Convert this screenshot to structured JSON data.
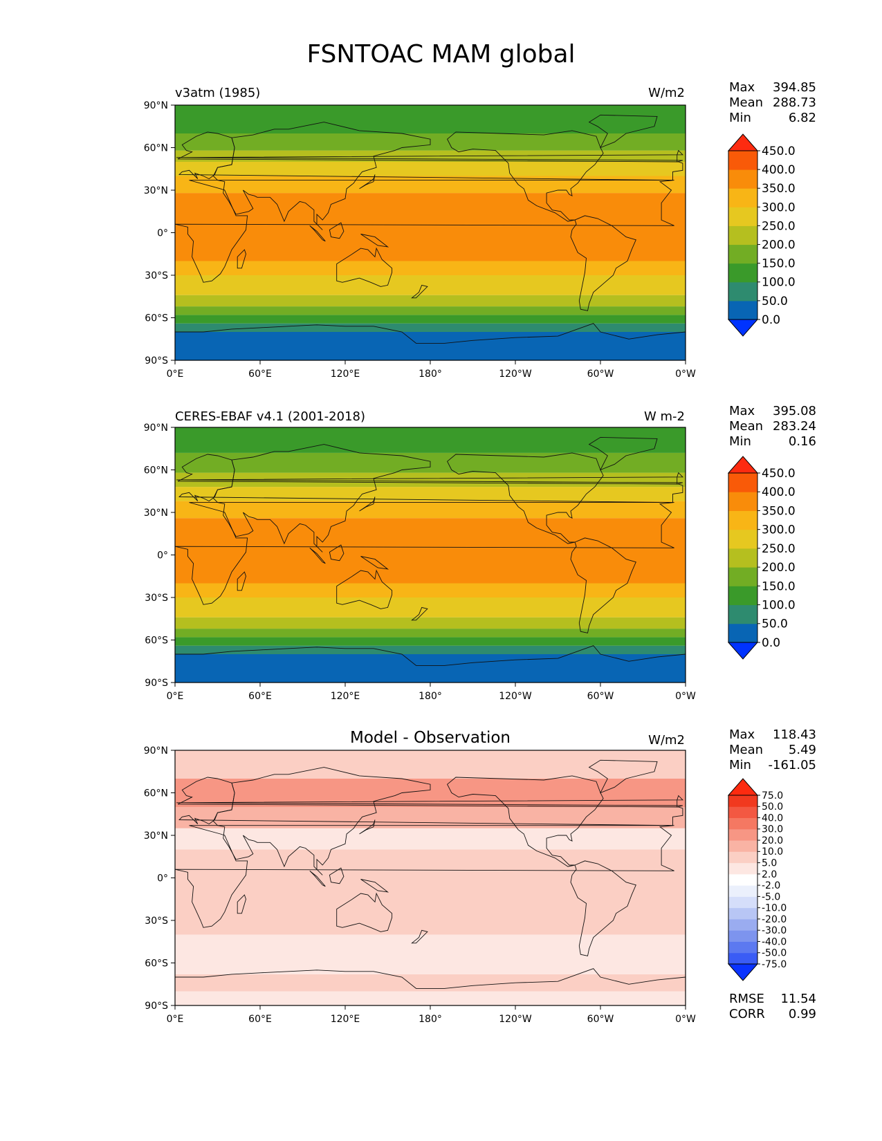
{
  "title": "FSNTOAC MAM global",
  "x_ticks": [
    "0°E",
    "60°E",
    "120°E",
    "180°",
    "120°W",
    "60°W",
    "0°W"
  ],
  "y_ticks": [
    "90°N",
    "60°N",
    "30°N",
    "0°",
    "30°S",
    "60°S",
    "90°S"
  ],
  "panels": [
    {
      "left_title": "v3atm (1985)",
      "center_title": "",
      "units": "W/m2",
      "stats": [
        {
          "label": "Max",
          "value": "394.85"
        },
        {
          "label": "Mean",
          "value": "288.73"
        },
        {
          "label": "Min",
          "value": "6.82"
        }
      ]
    },
    {
      "left_title": "CERES-EBAF v4.1 (2001-2018)",
      "center_title": "",
      "units": "W m-2",
      "stats": [
        {
          "label": "Max",
          "value": "395.08"
        },
        {
          "label": "Mean",
          "value": "283.24"
        },
        {
          "label": "Min",
          "value": "0.16"
        }
      ]
    },
    {
      "left_title": "",
      "center_title": "Model - Observation",
      "units": "W/m2",
      "stats": [
        {
          "label": "Max",
          "value": "118.43"
        },
        {
          "label": "Mean",
          "value": "5.49"
        },
        {
          "label": "Min",
          "value": "-161.05"
        }
      ],
      "extra_stats": [
        {
          "label": "RMSE",
          "value": "11.54"
        },
        {
          "label": "CORR",
          "value": "0.99"
        }
      ]
    }
  ],
  "chart_data": [
    {
      "type": "heatmap",
      "title": "v3atm (1985)",
      "units": "W/m2",
      "xlim": [
        0,
        360
      ],
      "ylim": [
        -90,
        90
      ],
      "colorbar": {
        "levels": [
          "0.0",
          "50.0",
          "100.0",
          "150.0",
          "200.0",
          "250.0",
          "300.0",
          "350.0",
          "400.0",
          "450.0"
        ],
        "colors": [
          "#0033ff",
          "#0865b4",
          "#2e8b6f",
          "#3a9a2a",
          "#72ad24",
          "#b5bf1f",
          "#e6c820",
          "#f8b516",
          "#f98c0a",
          "#f95a08",
          "#fd2b10"
        ],
        "extend": "both"
      },
      "zonal_bands": [
        {
          "lat": [
            -90,
            -70
          ],
          "value": 25
        },
        {
          "lat": [
            -70,
            -64
          ],
          "value": 75
        },
        {
          "lat": [
            -64,
            -58
          ],
          "value": 125
        },
        {
          "lat": [
            -58,
            -52
          ],
          "value": 175
        },
        {
          "lat": [
            -52,
            -44
          ],
          "value": 225
        },
        {
          "lat": [
            -44,
            -30
          ],
          "value": 275
        },
        {
          "lat": [
            -30,
            -20
          ],
          "value": 325
        },
        {
          "lat": [
            -20,
            28
          ],
          "value": 375
        },
        {
          "lat": [
            28,
            40
          ],
          "value": 325
        },
        {
          "lat": [
            40,
            50
          ],
          "value": 275
        },
        {
          "lat": [
            50,
            58
          ],
          "value": 225
        },
        {
          "lat": [
            58,
            70
          ],
          "value": 175
        },
        {
          "lat": [
            70,
            90
          ],
          "value": 125
        }
      ]
    },
    {
      "type": "heatmap",
      "title": "CERES-EBAF v4.1 (2001-2018)",
      "units": "W m-2",
      "xlim": [
        0,
        360
      ],
      "ylim": [
        -90,
        90
      ],
      "colorbar": {
        "levels": [
          "0.0",
          "50.0",
          "100.0",
          "150.0",
          "200.0",
          "250.0",
          "300.0",
          "350.0",
          "400.0",
          "450.0"
        ],
        "colors": [
          "#0033ff",
          "#0865b4",
          "#2e8b6f",
          "#3a9a2a",
          "#72ad24",
          "#b5bf1f",
          "#e6c820",
          "#f8b516",
          "#f98c0a",
          "#f95a08",
          "#fd2b10"
        ],
        "extend": "both"
      },
      "zonal_bands": [
        {
          "lat": [
            -90,
            -70
          ],
          "value": 25
        },
        {
          "lat": [
            -70,
            -64
          ],
          "value": 75
        },
        {
          "lat": [
            -64,
            -58
          ],
          "value": 125
        },
        {
          "lat": [
            -58,
            -52
          ],
          "value": 175
        },
        {
          "lat": [
            -52,
            -44
          ],
          "value": 225
        },
        {
          "lat": [
            -44,
            -30
          ],
          "value": 275
        },
        {
          "lat": [
            -30,
            -20
          ],
          "value": 325
        },
        {
          "lat": [
            -20,
            26
          ],
          "value": 375
        },
        {
          "lat": [
            26,
            38
          ],
          "value": 325
        },
        {
          "lat": [
            38,
            48
          ],
          "value": 275
        },
        {
          "lat": [
            48,
            58
          ],
          "value": 225
        },
        {
          "lat": [
            58,
            72
          ],
          "value": 175
        },
        {
          "lat": [
            72,
            90
          ],
          "value": 125
        }
      ]
    },
    {
      "type": "heatmap",
      "title": "Model - Observation",
      "units": "W/m2",
      "xlim": [
        0,
        360
      ],
      "ylim": [
        -90,
        90
      ],
      "colorbar": {
        "levels": [
          "-75.0",
          "-50.0",
          "-40.0",
          "-30.0",
          "-20.0",
          "-10.0",
          "-5.0",
          "-2.0",
          "2.0",
          "5.0",
          "10.0",
          "20.0",
          "30.0",
          "40.0",
          "50.0",
          "75.0"
        ],
        "colors": [
          "#0a33ff",
          "#3a5cf5",
          "#5c79f0",
          "#7d94ee",
          "#9aacf0",
          "#b8c6f5",
          "#d5defa",
          "#ebf0fc",
          "#ffffff",
          "#fde7e2",
          "#fbcfc4",
          "#f9b3a4",
          "#f79684",
          "#f57862",
          "#f35842",
          "#f1391f",
          "#fd2b10"
        ],
        "extend": "both"
      },
      "zonal_bands": [
        {
          "lat": [
            -90,
            -80
          ],
          "value": 3
        },
        {
          "lat": [
            -80,
            -68
          ],
          "value": 8
        },
        {
          "lat": [
            -68,
            -40
          ],
          "value": 4
        },
        {
          "lat": [
            -40,
            20
          ],
          "value": 6
        },
        {
          "lat": [
            20,
            35
          ],
          "value": 3
        },
        {
          "lat": [
            35,
            50
          ],
          "value": 12
        },
        {
          "lat": [
            50,
            70
          ],
          "value": 25
        },
        {
          "lat": [
            70,
            90
          ],
          "value": 8
        }
      ]
    }
  ]
}
